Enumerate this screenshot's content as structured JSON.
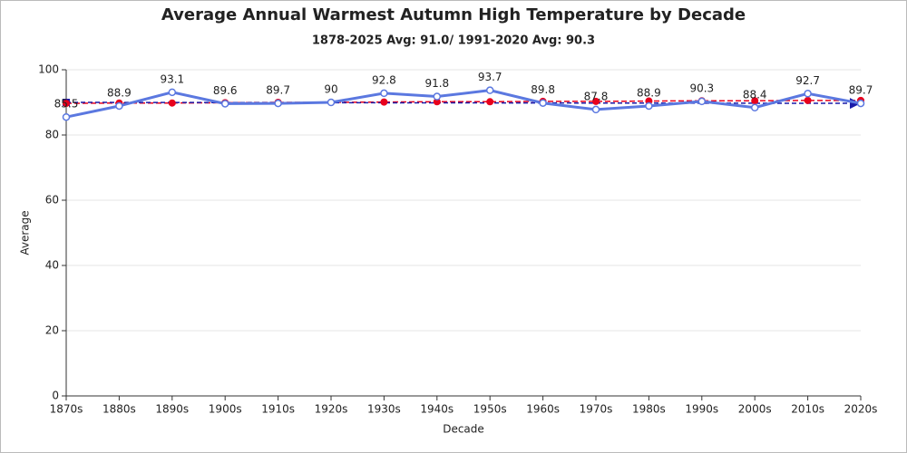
{
  "chart_data": {
    "type": "line",
    "title": "Average Annual Warmest Autumn High Temperature by Decade",
    "subtitle": "1878-2025 Avg: 91.0/ 1991-2020 Avg: 90.3",
    "x_label": "Decade",
    "y_label": "Average",
    "categories": [
      "1870s",
      "1880s",
      "1890s",
      "1900s",
      "1910s",
      "1920s",
      "1930s",
      "1940s",
      "1950s",
      "1960s",
      "1970s",
      "1980s",
      "1990s",
      "2000s",
      "2010s",
      "2020s"
    ],
    "series": [
      {
        "color": "#5b78e0",
        "values": [
          85.5,
          88.9,
          93.1,
          89.6,
          89.7,
          90,
          92.8,
          91.8,
          93.7,
          89.8,
          87.8,
          88.9,
          90.3,
          88.4,
          92.7,
          89.7
        ]
      },
      {
        "color": "#e8001c",
        "values": [
          89.7,
          89.8,
          89.8,
          89.9,
          90.0,
          90.0,
          90.1,
          90.2,
          90.2,
          90.3,
          90.3,
          90.4,
          90.5,
          90.5,
          90.6,
          90.6
        ]
      }
    ],
    "reference": {
      "start": 90,
      "end": 89.7,
      "color": "#1a1aa8"
    },
    "ylim": [
      0,
      100
    ],
    "yticks": [
      0,
      20,
      40,
      60,
      80,
      100
    ],
    "grid": true
  }
}
